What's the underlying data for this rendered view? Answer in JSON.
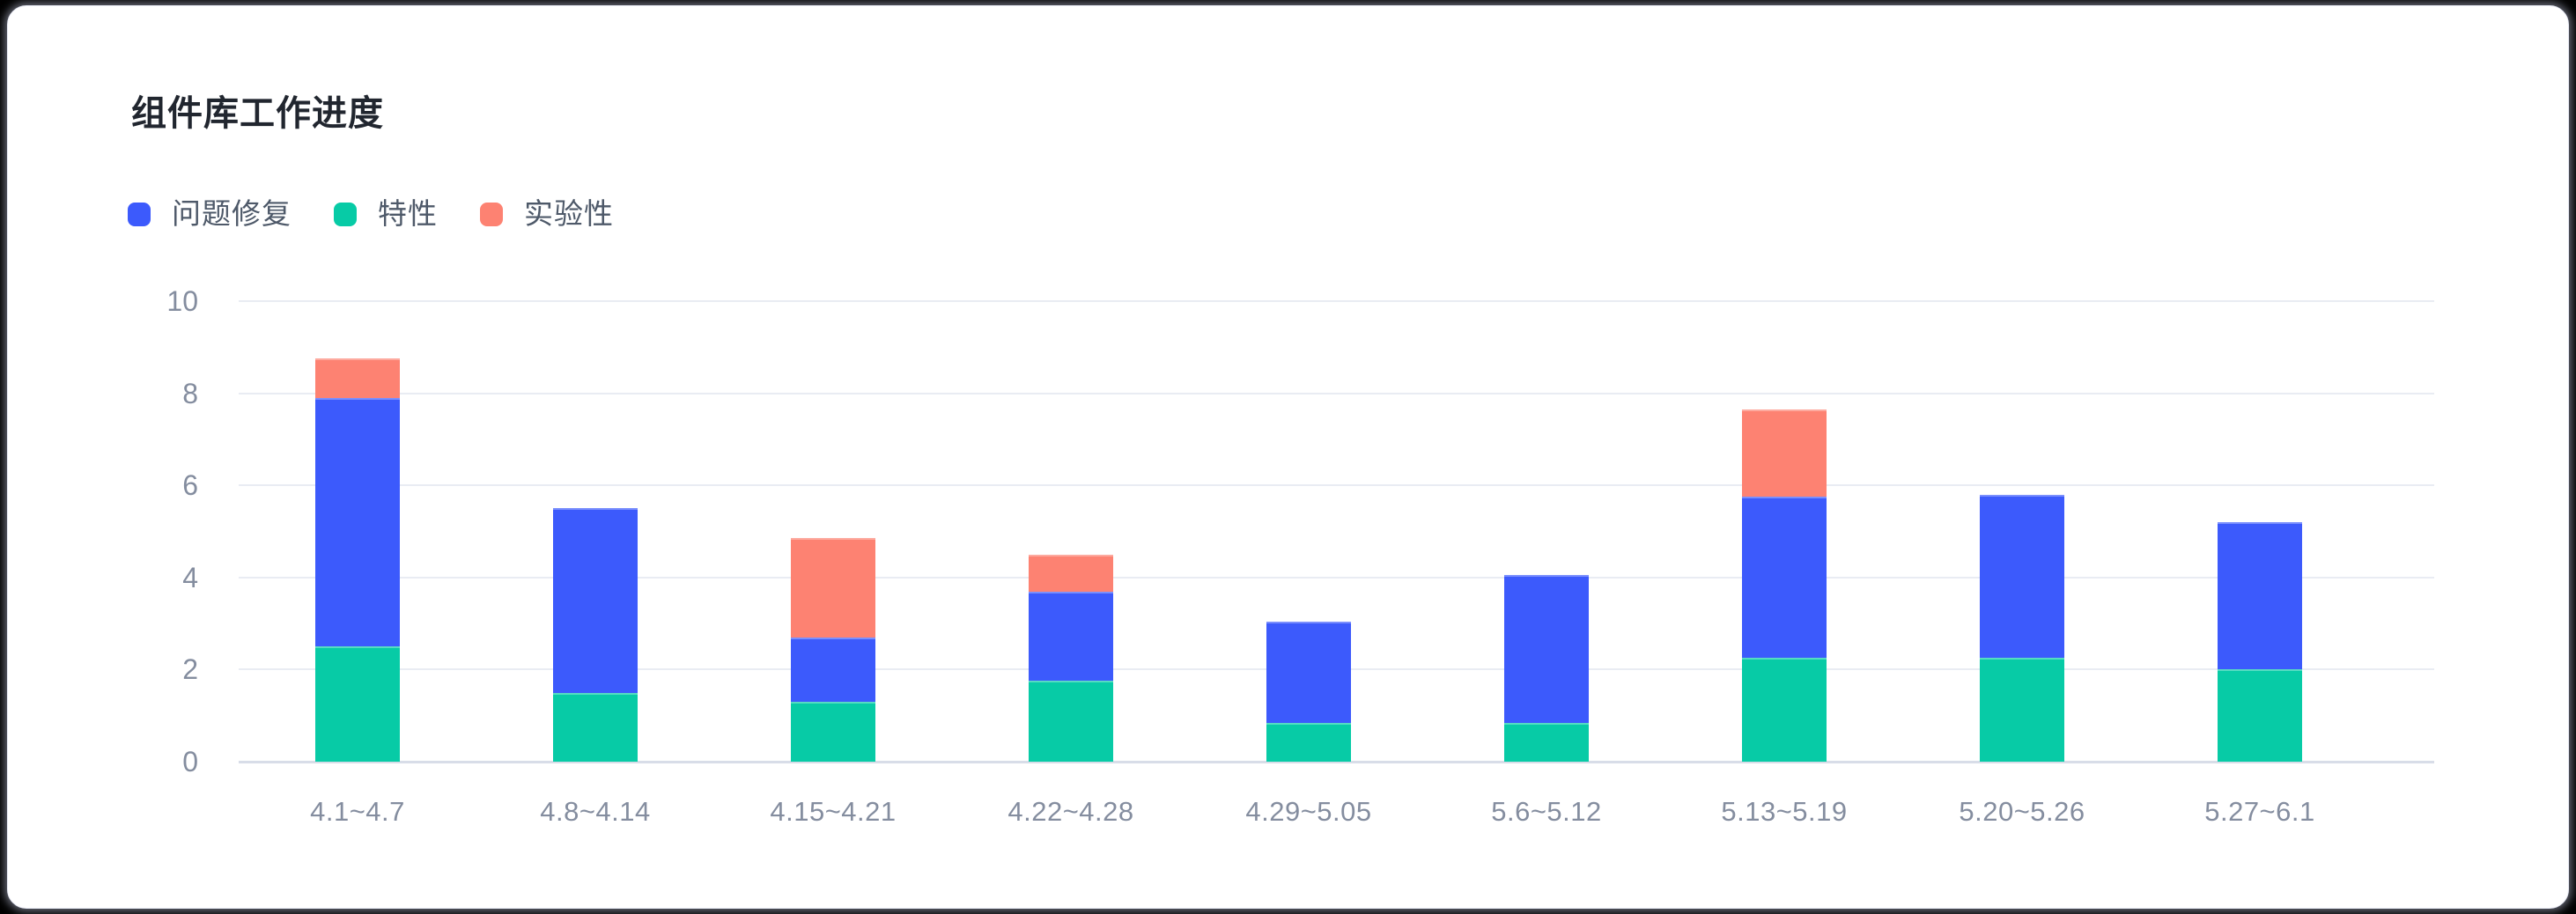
{
  "page": {
    "background_color": "#000000",
    "card_background_color": "#ffffff"
  },
  "chart": {
    "title": "组件库工作进度"
  },
  "legend": {
    "items": [
      {
        "label": "问题修复",
        "color": "#3c5afc"
      },
      {
        "label": "特性",
        "color": "#07cba6"
      },
      {
        "label": "实验性",
        "color": "#fd8272"
      }
    ]
  },
  "chart_data": {
    "type": "bar",
    "stacked": true,
    "title": "组件库工作进度",
    "categories": [
      "4.1~4.7",
      "4.8~4.14",
      "4.15~4.21",
      "4.22~4.28",
      "4.29~5.05",
      "5.6~5.12",
      "5.13~5.19",
      "5.20~5.26",
      "5.27~6.1"
    ],
    "series": [
      {
        "name": "特性",
        "color": "#07cba6",
        "values": [
          2.5,
          1.5,
          1.3,
          1.75,
          0.85,
          0.85,
          2.25,
          2.25,
          2.0
        ]
      },
      {
        "name": "问题修复",
        "color": "#3c5afc",
        "values": [
          5.4,
          4.0,
          1.4,
          1.95,
          2.2,
          3.2,
          3.5,
          3.55,
          3.2
        ]
      },
      {
        "name": "实验性",
        "color": "#fd8272",
        "values": [
          0.85,
          0,
          2.15,
          0.8,
          0,
          0,
          1.9,
          0,
          0
        ]
      }
    ],
    "stack_order_bottom_to_top": [
      "特性",
      "问题修复",
      "实验性"
    ],
    "legend_order": [
      "问题修复",
      "特性",
      "实验性"
    ],
    "legend_position": "top-left",
    "xlabel": "",
    "ylabel": "",
    "ylim": [
      0,
      10
    ],
    "yticks": [
      0,
      2,
      4,
      6,
      8,
      10
    ],
    "grid": true
  },
  "axis_style": {
    "tick_label_color": "#848d9f",
    "grid_color": "#e9ecf3",
    "baseline_color": "#d8dde8"
  }
}
